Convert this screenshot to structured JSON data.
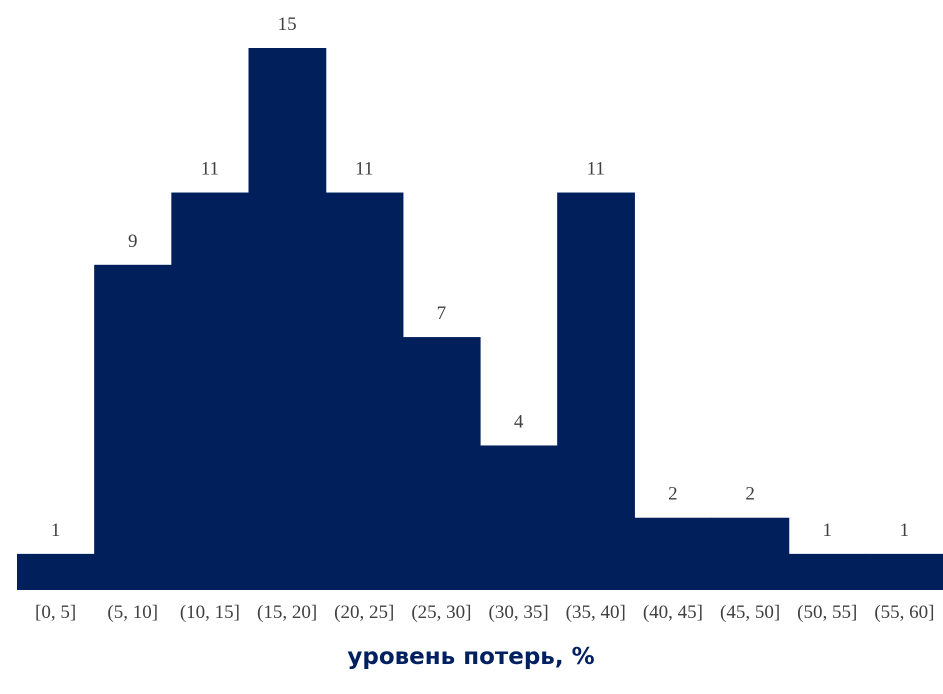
{
  "chart_data": {
    "type": "bar",
    "title": "",
    "xlabel": "уровень потерь, %",
    "ylabel": "",
    "categories": [
      "[0, 5]",
      "(5, 10]",
      "(10, 15]",
      "(15, 20]",
      "(20, 25]",
      "(25, 30]",
      "(30, 35]",
      "(35, 40]",
      "(40, 45]",
      "(45, 50]",
      "(50, 55]",
      "(55, 60]"
    ],
    "values": [
      1,
      9,
      11,
      15,
      11,
      7,
      4,
      11,
      2,
      2,
      1,
      1
    ],
    "ylim": [
      0,
      15
    ],
    "bar_color": "#001F5B",
    "grid": false,
    "legend": "none",
    "data_labels": true
  }
}
